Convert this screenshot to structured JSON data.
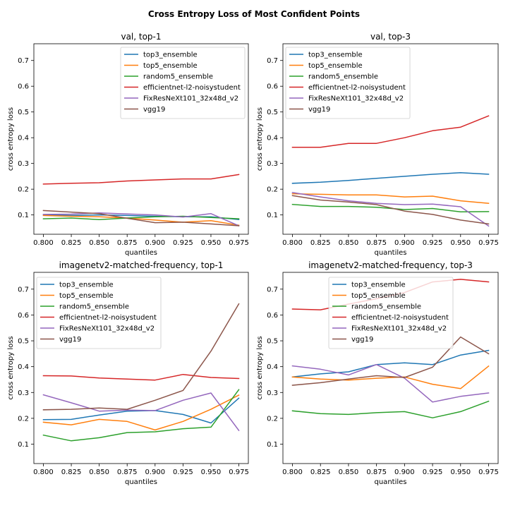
{
  "figure": {
    "title": "Cross Entropy Loss of Most Confident Points"
  },
  "series_colors": {
    "top3_ensemble": "#1f77b4",
    "top5_ensemble": "#ff7f0e",
    "random5_ensemble": "#2ca02c",
    "efficientnet-l2-noisystudent": "#d62728",
    "FixResNeXt101_32x48d_v2": "#9467bd",
    "vgg19": "#8c564b"
  },
  "chart_data": [
    {
      "type": "line",
      "title": "val, top-1",
      "xlabel": "quantiles",
      "ylabel": "cross entropy loss",
      "x": [
        0.8,
        0.825,
        0.85,
        0.875,
        0.9,
        0.925,
        0.95,
        0.975
      ],
      "xticks": [
        "0.800",
        "0.825",
        "0.850",
        "0.875",
        "0.900",
        "0.925",
        "0.950",
        "0.975"
      ],
      "yticks": [
        "0.1",
        "0.2",
        "0.3",
        "0.4",
        "0.5",
        "0.6",
        "0.7"
      ],
      "xlim": [
        0.7915,
        0.9835
      ],
      "ylim": [
        0.025,
        0.765
      ],
      "legend_position": "upper-right",
      "grid": false,
      "series": [
        {
          "name": "top3_ensemble",
          "values": [
            0.1,
            0.098,
            0.1,
            0.098,
            0.095,
            0.093,
            0.093,
            0.082
          ]
        },
        {
          "name": "top5_ensemble",
          "values": [
            0.098,
            0.095,
            0.093,
            0.088,
            0.08,
            0.072,
            0.078,
            0.06
          ]
        },
        {
          "name": "random5_ensemble",
          "values": [
            0.085,
            0.088,
            0.082,
            0.088,
            0.093,
            0.095,
            0.09,
            0.085
          ]
        },
        {
          "name": "efficientnet-l2-noisystudent",
          "values": [
            0.22,
            0.223,
            0.225,
            0.232,
            0.236,
            0.24,
            0.24,
            0.257
          ]
        },
        {
          "name": "FixResNeXt101_32x48d_v2",
          "values": [
            0.102,
            0.103,
            0.108,
            0.104,
            0.1,
            0.092,
            0.105,
            0.058
          ]
        },
        {
          "name": "vgg19",
          "values": [
            0.117,
            0.111,
            0.105,
            0.087,
            0.07,
            0.072,
            0.065,
            0.058
          ]
        }
      ]
    },
    {
      "type": "line",
      "title": "val, top-3",
      "xlabel": "quantiles",
      "ylabel": "cross entropy loss",
      "x": [
        0.8,
        0.825,
        0.85,
        0.875,
        0.9,
        0.925,
        0.95,
        0.975
      ],
      "xticks": [
        "0.800",
        "0.825",
        "0.850",
        "0.875",
        "0.900",
        "0.925",
        "0.950",
        "0.975"
      ],
      "yticks": [
        "0.1",
        "0.2",
        "0.3",
        "0.4",
        "0.5",
        "0.6",
        "0.7"
      ],
      "xlim": [
        0.7915,
        0.9835
      ],
      "ylim": [
        0.025,
        0.765
      ],
      "legend_position": "upper-left",
      "grid": false,
      "series": [
        {
          "name": "top3_ensemble",
          "values": [
            0.223,
            0.227,
            0.234,
            0.242,
            0.25,
            0.258,
            0.264,
            0.258
          ]
        },
        {
          "name": "top5_ensemble",
          "values": [
            0.182,
            0.18,
            0.178,
            0.178,
            0.17,
            0.173,
            0.155,
            0.145
          ]
        },
        {
          "name": "random5_ensemble",
          "values": [
            0.141,
            0.133,
            0.133,
            0.13,
            0.121,
            0.125,
            0.112,
            0.113
          ]
        },
        {
          "name": "efficientnet-l2-noisystudent",
          "values": [
            0.363,
            0.363,
            0.378,
            0.378,
            0.4,
            0.427,
            0.441,
            0.485
          ]
        },
        {
          "name": "FixResNeXt101_32x48d_v2",
          "values": [
            0.187,
            0.17,
            0.155,
            0.145,
            0.14,
            0.142,
            0.132,
            0.057
          ]
        },
        {
          "name": "vgg19",
          "values": [
            0.175,
            0.158,
            0.15,
            0.14,
            0.115,
            0.102,
            0.08,
            0.065
          ]
        }
      ]
    },
    {
      "type": "line",
      "title": "imagenetv2-matched-frequency, top-1",
      "xlabel": "quantiles",
      "ylabel": "cross entropy loss",
      "x": [
        0.8,
        0.825,
        0.85,
        0.875,
        0.9,
        0.925,
        0.95,
        0.975
      ],
      "xticks": [
        "0.800",
        "0.825",
        "0.850",
        "0.875",
        "0.900",
        "0.925",
        "0.950",
        "0.975"
      ],
      "yticks": [
        "0.1",
        "0.2",
        "0.3",
        "0.4",
        "0.5",
        "0.6",
        "0.7"
      ],
      "xlim": [
        0.7915,
        0.9835
      ],
      "ylim": [
        0.025,
        0.765
      ],
      "legend_position": "upper-left",
      "grid": false,
      "series": [
        {
          "name": "top3_ensemble",
          "values": [
            0.195,
            0.196,
            0.213,
            0.228,
            0.23,
            0.215,
            0.182,
            0.278
          ]
        },
        {
          "name": "top5_ensemble",
          "values": [
            0.185,
            0.175,
            0.196,
            0.188,
            0.155,
            0.188,
            0.235,
            0.29
          ]
        },
        {
          "name": "random5_ensemble",
          "values": [
            0.135,
            0.113,
            0.125,
            0.145,
            0.148,
            0.16,
            0.166,
            0.311
          ]
        },
        {
          "name": "efficientnet-l2-noisystudent",
          "values": [
            0.365,
            0.364,
            0.356,
            0.352,
            0.348,
            0.37,
            0.358,
            0.354
          ]
        },
        {
          "name": "FixResNeXt101_32x48d_v2",
          "values": [
            0.291,
            0.26,
            0.228,
            0.232,
            0.23,
            0.27,
            0.298,
            0.153
          ]
        },
        {
          "name": "vgg19",
          "values": [
            0.233,
            0.235,
            0.24,
            0.235,
            0.27,
            0.308,
            0.46,
            0.643
          ]
        }
      ]
    },
    {
      "type": "line",
      "title": "imagenetv2-matched-frequency, top-3",
      "xlabel": "quantiles",
      "ylabel": "cross entropy loss",
      "x": [
        0.8,
        0.825,
        0.85,
        0.875,
        0.9,
        0.925,
        0.95,
        0.975
      ],
      "xticks": [
        "0.800",
        "0.825",
        "0.850",
        "0.875",
        "0.900",
        "0.925",
        "0.950",
        "0.975"
      ],
      "yticks": [
        "0.1",
        "0.2",
        "0.3",
        "0.4",
        "0.5",
        "0.6",
        "0.7"
      ],
      "xlim": [
        0.7915,
        0.9835
      ],
      "ylim": [
        0.025,
        0.765
      ],
      "legend_position": "upper-center",
      "grid": false,
      "series": [
        {
          "name": "top3_ensemble",
          "values": [
            0.36,
            0.372,
            0.38,
            0.408,
            0.415,
            0.408,
            0.445,
            0.463
          ]
        },
        {
          "name": "top5_ensemble",
          "values": [
            0.36,
            0.352,
            0.348,
            0.355,
            0.36,
            0.332,
            0.315,
            0.402
          ]
        },
        {
          "name": "random5_ensemble",
          "values": [
            0.229,
            0.218,
            0.215,
            0.222,
            0.226,
            0.202,
            0.226,
            0.266
          ]
        },
        {
          "name": "efficientnet-l2-noisystudent",
          "values": [
            0.623,
            0.62,
            0.642,
            0.663,
            0.687,
            0.728,
            0.738,
            0.728
          ]
        },
        {
          "name": "FixResNeXt101_32x48d_v2",
          "values": [
            0.403,
            0.39,
            0.368,
            0.408,
            0.355,
            0.263,
            0.285,
            0.298
          ]
        },
        {
          "name": "vgg19",
          "values": [
            0.328,
            0.338,
            0.352,
            0.365,
            0.358,
            0.398,
            0.515,
            0.45
          ]
        }
      ]
    }
  ]
}
